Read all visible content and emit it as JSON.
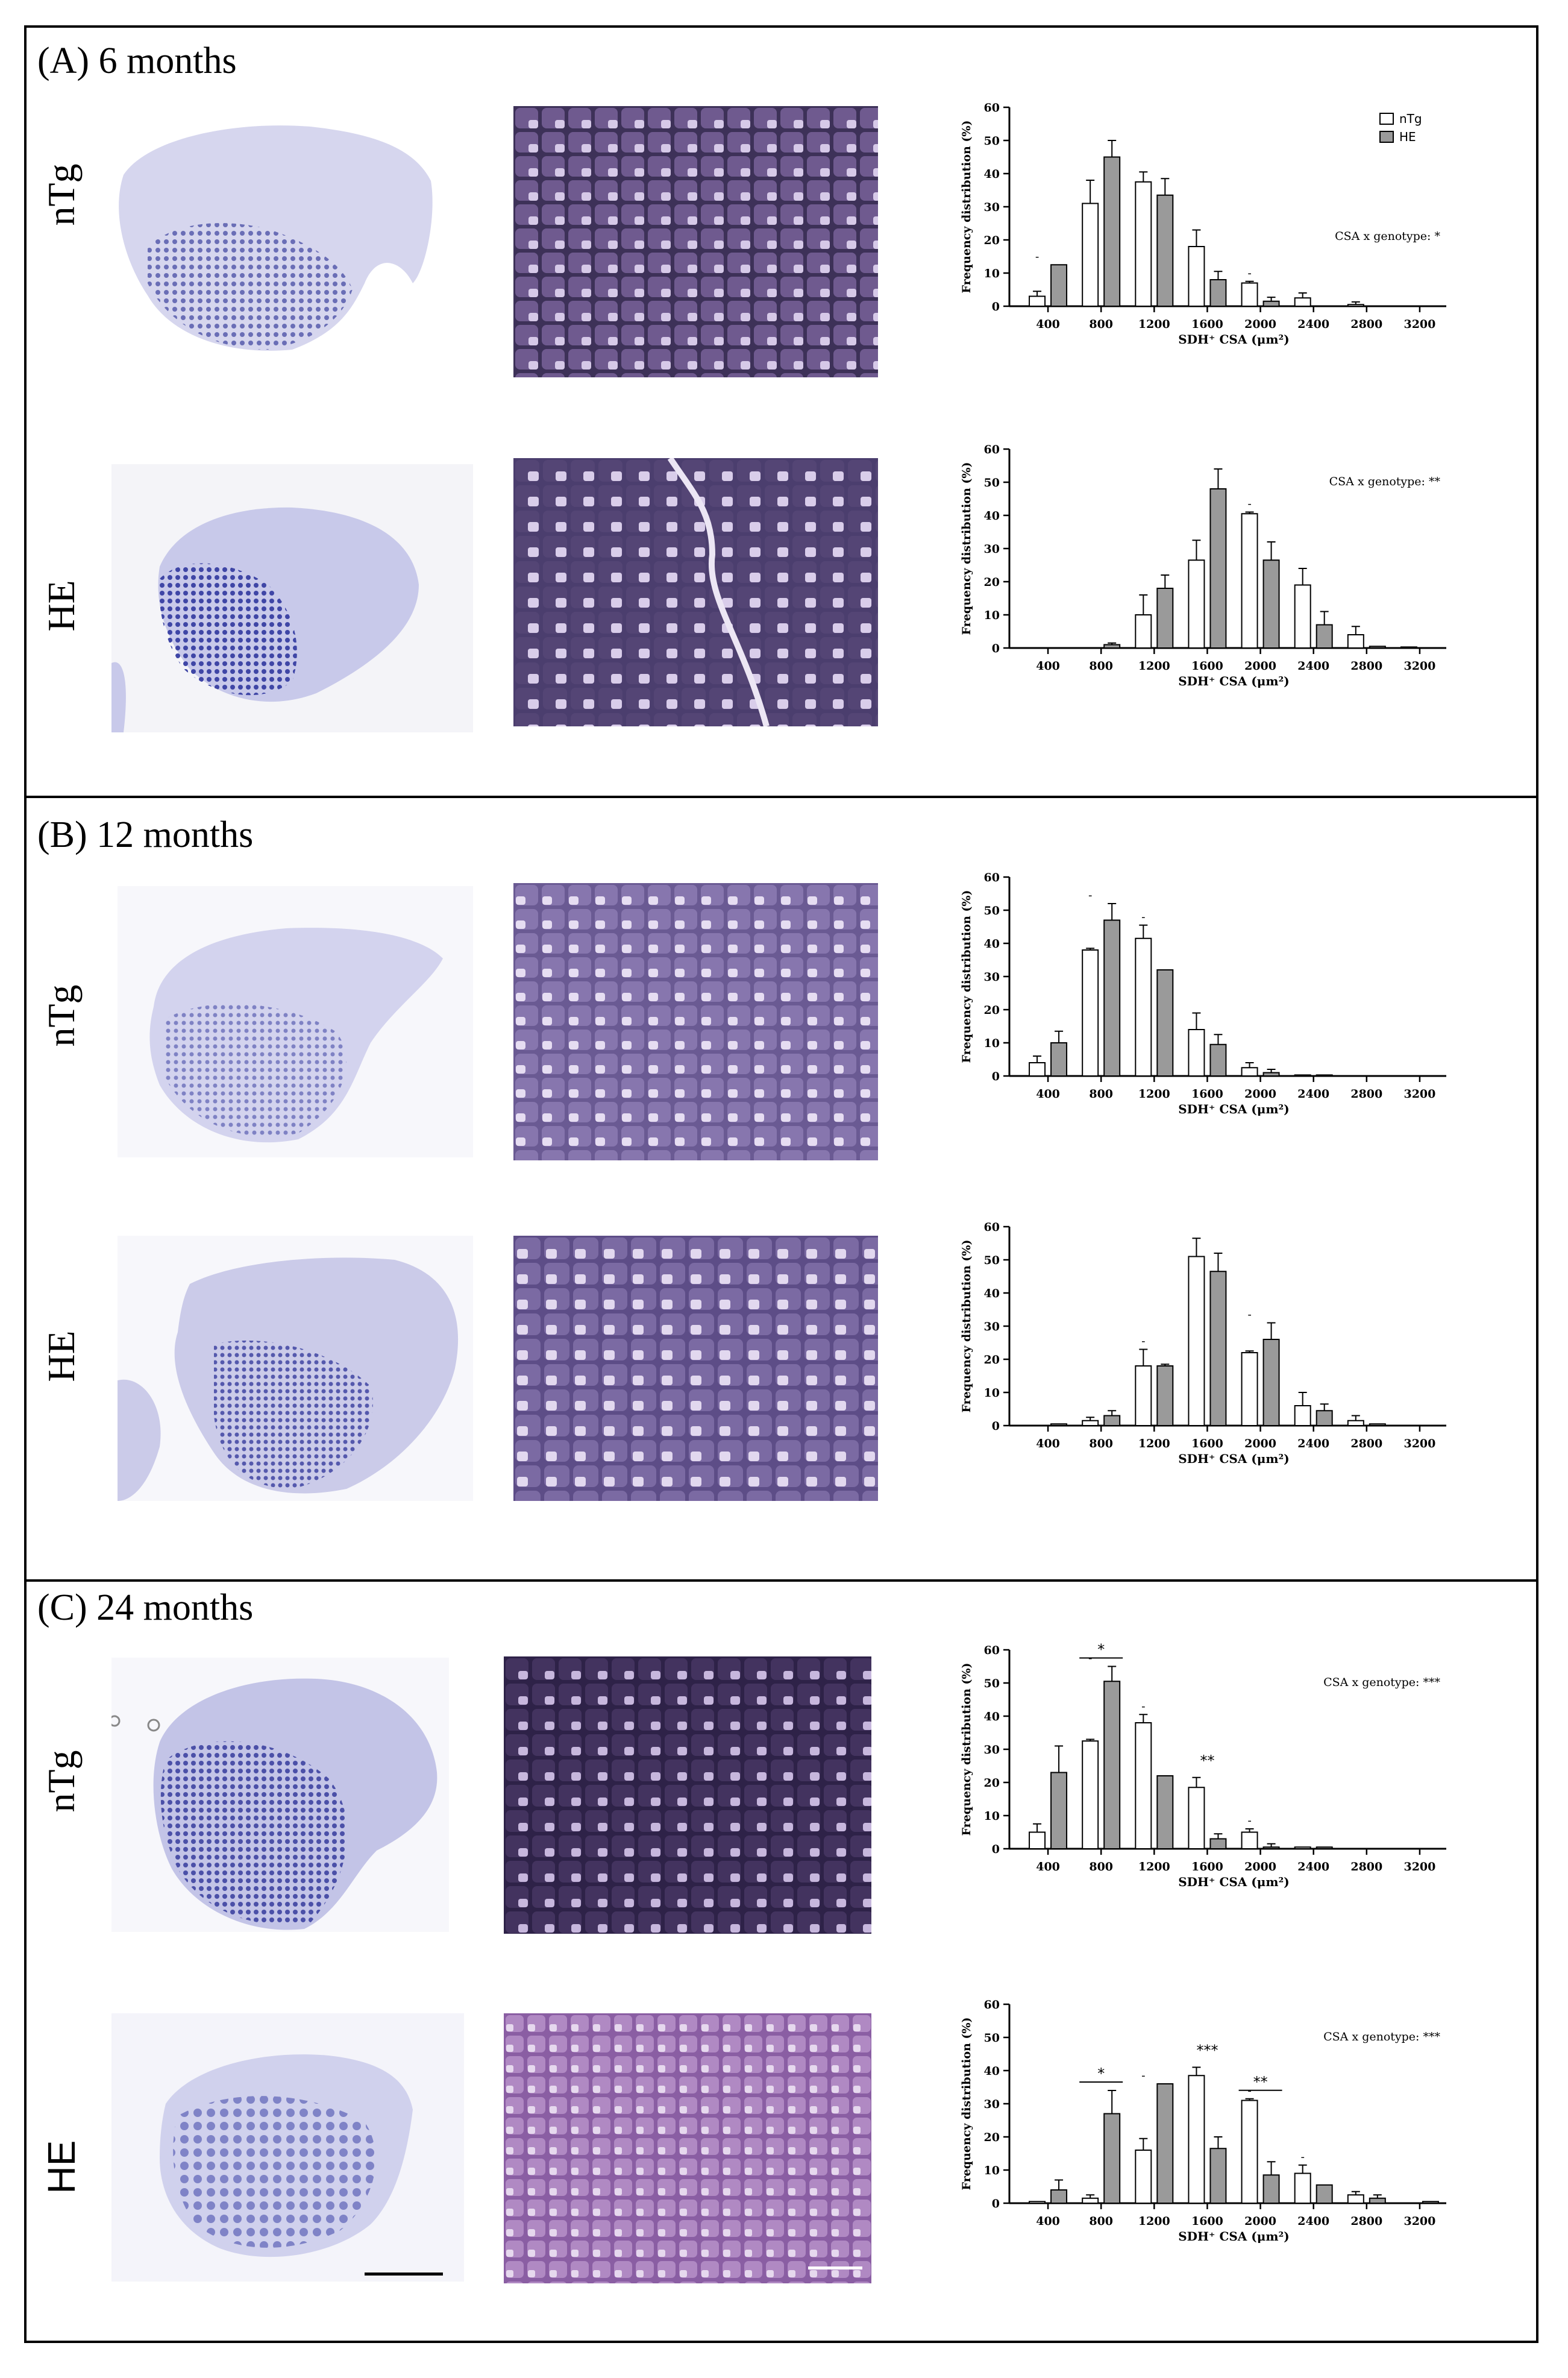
{
  "panels": [
    {
      "title": "(A) 6 months",
      "rows": [
        {
          "label": "nTg",
          "chart": {
            "type": "bar",
            "categories": [
              "400",
              "800",
              "1200",
              "1600",
              "2000",
              "2400",
              "2800",
              "3200"
            ],
            "series": [
              {
                "name": "nTg",
                "values": [
                  3,
                  31,
                  37.5,
                  18,
                  7,
                  2.5,
                  0.5,
                  0
                ],
                "errors": [
                  1.5,
                  7,
                  3,
                  5,
                  0.5,
                  1.5,
                  0.8,
                  0
                ]
              },
              {
                "name": "HE",
                "values": [
                  12.5,
                  45,
                  33.5,
                  8,
                  1.5,
                  0,
                  0,
                  0
                ],
                "errors": [
                  0,
                  5,
                  5,
                  2.5,
                  1.2,
                  0,
                  0,
                  0
                ]
              }
            ],
            "marks": [
              {
                "cat": 0,
                "text": "-"
              },
              {
                "cat": 4,
                "text": "-"
              }
            ],
            "ylim": [
              0,
              60
            ],
            "yticks": [
              "0",
              "10",
              "20",
              "30",
              "40",
              "50",
              "60"
            ],
            "ylabel": "Frequency distribution (%)",
            "xlabel": "SDH⁺ CSA (μm²)",
            "annotation": "CSA x genotype: *",
            "legend": [
              "nTg",
              "HE"
            ]
          }
        },
        {
          "label": "HE",
          "chart": {
            "type": "bar",
            "categories": [
              "400",
              "800",
              "1200",
              "1600",
              "2000",
              "2400",
              "2800",
              "3200"
            ],
            "series": [
              {
                "name": "nTg",
                "values": [
                  0,
                  0,
                  10,
                  26.5,
                  40.5,
                  19,
                  4,
                  0.3
                ],
                "errors": [
                  0,
                  0,
                  6,
                  6,
                  0.5,
                  5,
                  2.5,
                  0
                ]
              },
              {
                "name": "HE",
                "values": [
                  0,
                  1,
                  18,
                  48,
                  26.5,
                  7,
                  0.5,
                  0
                ],
                "errors": [
                  0,
                  0.5,
                  4,
                  6,
                  5.5,
                  4,
                  0,
                  0
                ]
              }
            ],
            "marks": [
              {
                "cat": 4,
                "text": "-"
              }
            ],
            "ylim": [
              0,
              60
            ],
            "yticks": [
              "0",
              "10",
              "20",
              "30",
              "40",
              "50",
              "60"
            ],
            "ylabel": "Frequency distribution (%)",
            "xlabel": "SDH⁺ CSA (μm²)",
            "annotation": "CSA x genotype: **"
          }
        }
      ]
    },
    {
      "title": "(B) 12 months",
      "rows": [
        {
          "label": "nTg",
          "chart": {
            "type": "bar",
            "categories": [
              "400",
              "800",
              "1200",
              "1600",
              "2000",
              "2400",
              "2800",
              "3200"
            ],
            "series": [
              {
                "name": "nTg",
                "values": [
                  4,
                  38,
                  41.5,
                  14,
                  2.5,
                  0.3,
                  0,
                  0
                ],
                "errors": [
                  2,
                  0.5,
                  4,
                  5,
                  1.5,
                  0,
                  0,
                  0
                ]
              },
              {
                "name": "HE",
                "values": [
                  10,
                  47,
                  32,
                  9.5,
                  1,
                  0.3,
                  0,
                  0
                ],
                "errors": [
                  3.5,
                  5,
                  0,
                  3,
                  1,
                  0,
                  0,
                  0
                ]
              }
            ],
            "marks": [
              {
                "cat": 1,
                "text": "-"
              },
              {
                "cat": 2,
                "text": "-"
              }
            ],
            "ylim": [
              0,
              60
            ],
            "yticks": [
              "0",
              "10",
              "20",
              "30",
              "40",
              "50",
              "60"
            ],
            "ylabel": "Frequency distribution (%)",
            "xlabel": "SDH⁺ CSA (μm²)"
          }
        },
        {
          "label": "HE",
          "chart": {
            "type": "bar",
            "categories": [
              "400",
              "800",
              "1200",
              "1600",
              "2000",
              "2400",
              "2800",
              "3200"
            ],
            "series": [
              {
                "name": "nTg",
                "values": [
                  0,
                  1.5,
                  18,
                  51,
                  22,
                  6,
                  1.5,
                  0
                ],
                "errors": [
                  0,
                  1,
                  5,
                  5.5,
                  0.5,
                  4,
                  1.5,
                  0
                ]
              },
              {
                "name": "HE",
                "values": [
                  0.5,
                  3,
                  18,
                  46.5,
                  26,
                  4.5,
                  0.5,
                  0
                ],
                "errors": [
                  0,
                  1.5,
                  0.5,
                  5.5,
                  5,
                  2,
                  0,
                  0
                ]
              }
            ],
            "marks": [
              {
                "cat": 2,
                "text": "-"
              },
              {
                "cat": 4,
                "text": "-"
              }
            ],
            "ylim": [
              0,
              60
            ],
            "yticks": [
              "0",
              "10",
              "20",
              "30",
              "40",
              "50",
              "60"
            ],
            "ylabel": "Frequency distribution (%)",
            "xlabel": "SDH⁺ CSA (μm²)"
          }
        }
      ]
    },
    {
      "title": "(C) 24 months",
      "rows": [
        {
          "label": "nTg",
          "chart": {
            "type": "bar",
            "categories": [
              "400",
              "800",
              "1200",
              "1600",
              "2000",
              "2400",
              "2800",
              "3200"
            ],
            "series": [
              {
                "name": "nTg",
                "values": [
                  5,
                  32.5,
                  38,
                  18.5,
                  5,
                  0.5,
                  0,
                  0
                ],
                "errors": [
                  2.5,
                  0.5,
                  2.5,
                  3,
                  1,
                  0,
                  0,
                  0
                ]
              },
              {
                "name": "HE",
                "values": [
                  23,
                  50.5,
                  22,
                  3,
                  0.5,
                  0.5,
                  0,
                  0
                ],
                "errors": [
                  8,
                  4.5,
                  0,
                  1.5,
                  1,
                  0,
                  0,
                  0
                ]
              }
            ],
            "marks": [
              {
                "cat": 1,
                "text": "-"
              },
              {
                "cat": 2,
                "text": "-"
              },
              {
                "cat": 4,
                "text": "-"
              }
            ],
            "sig": [
              {
                "cat": 1,
                "text": "*",
                "bracket": true
              },
              {
                "cat": 3,
                "text": "**",
                "bracket": false
              }
            ],
            "ylim": [
              0,
              60
            ],
            "yticks": [
              "0",
              "10",
              "20",
              "30",
              "40",
              "50",
              "60"
            ],
            "ylabel": "Frequency distribution (%)",
            "xlabel": "SDH⁺ CSA (μm²)",
            "annotation": "CSA x genotype: ***"
          }
        },
        {
          "label": "HE",
          "chart": {
            "type": "bar",
            "categories": [
              "400",
              "800",
              "1200",
              "1600",
              "2000",
              "2400",
              "2800",
              "3200"
            ],
            "series": [
              {
                "name": "nTg",
                "values": [
                  0.5,
                  1.5,
                  16,
                  38.5,
                  31,
                  9,
                  2.5,
                  0
                ],
                "errors": [
                  0,
                  1,
                  3.5,
                  2.5,
                  0.5,
                  2.5,
                  1,
                  0
                ]
              },
              {
                "name": "HE",
                "values": [
                  4,
                  27,
                  36,
                  16.5,
                  8.5,
                  5.5,
                  1.5,
                  0.5
                ],
                "errors": [
                  3,
                  7,
                  0,
                  3.5,
                  4,
                  0,
                  1,
                  0
                ]
              }
            ],
            "marks": [
              {
                "cat": 2,
                "text": "-"
              },
              {
                "cat": 4,
                "text": "-"
              },
              {
                "cat": 5,
                "text": "-"
              }
            ],
            "sig": [
              {
                "cat": 1,
                "text": "*",
                "bracket": true
              },
              {
                "cat": 3,
                "text": "***",
                "bracket": false
              },
              {
                "cat": 4,
                "text": "**",
                "bracket": true
              }
            ],
            "ylim": [
              0,
              60
            ],
            "yticks": [
              "0",
              "10",
              "20",
              "30",
              "40",
              "50",
              "60"
            ],
            "ylabel": "Frequency distribution (%)",
            "xlabel": "SDH⁺ CSA (μm²)",
            "annotation": "CSA x genotype: ***"
          }
        }
      ]
    }
  ]
}
